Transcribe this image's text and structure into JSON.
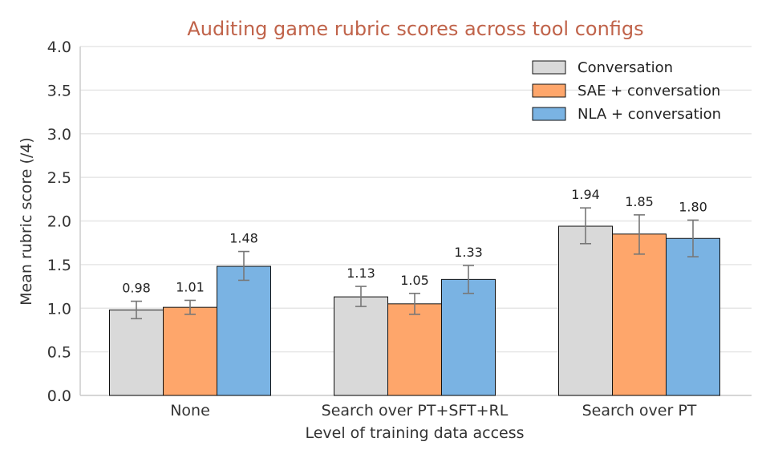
{
  "chart_data": {
    "type": "bar",
    "title": "Auditing game rubric scores across tool configs",
    "xlabel": "Level of training data access",
    "ylabel": "Mean rubric score (/4)",
    "ylim": [
      0,
      4
    ],
    "yticks": [
      "0.0",
      "0.5",
      "1.0",
      "1.5",
      "2.0",
      "2.5",
      "3.0",
      "3.5",
      "4.0"
    ],
    "categories": [
      "None",
      "Search over PT+SFT+RL",
      "Search over PT"
    ],
    "grid": "horizontal",
    "legend_position": "top-right",
    "series": [
      {
        "name": "Conversation",
        "color": "#d9d9d9",
        "values": [
          0.98,
          1.13,
          1.94
        ],
        "errors": [
          [
            0.88,
            1.08
          ],
          [
            1.02,
            1.25
          ],
          [
            1.74,
            2.15
          ]
        ],
        "labels": [
          "0.98",
          "1.13",
          "1.94"
        ]
      },
      {
        "name": "SAE + conversation",
        "color": "#fea66b",
        "values": [
          1.01,
          1.05,
          1.85
        ],
        "errors": [
          [
            0.93,
            1.09
          ],
          [
            0.93,
            1.17
          ],
          [
            1.62,
            2.07
          ]
        ],
        "labels": [
          "1.01",
          "1.05",
          "1.85"
        ]
      },
      {
        "name": "NLA + conversation",
        "color": "#7ab3e3",
        "values": [
          1.48,
          1.33,
          1.8
        ],
        "errors": [
          [
            1.32,
            1.65
          ],
          [
            1.17,
            1.49
          ],
          [
            1.59,
            2.01
          ]
        ],
        "labels": [
          "1.48",
          "1.33",
          "1.80"
        ]
      }
    ],
    "colors": {
      "title": "#c0634a",
      "grid": "#e6e6e6",
      "axis": "#cccccc",
      "errorbar": "#777777",
      "bar_edge": "#111111"
    }
  }
}
